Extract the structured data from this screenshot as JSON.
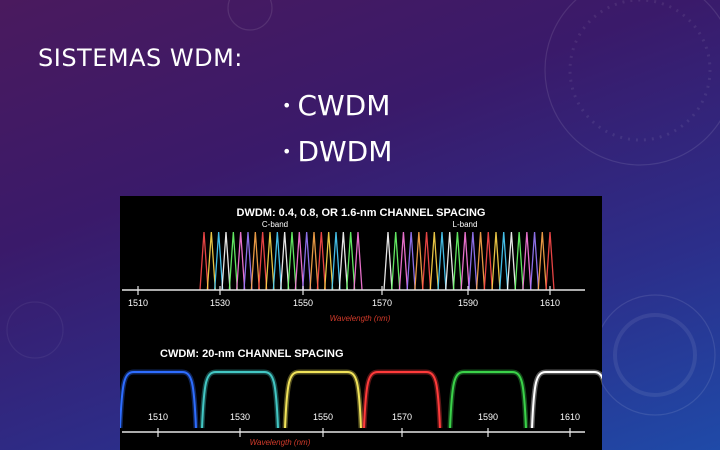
{
  "slide": {
    "title": "SISTEMAS WDM:",
    "bullets": [
      "CWDM",
      "DWDM"
    ]
  },
  "figure": {
    "dwdm": {
      "title": "DWDM: 0.4, 0.8, OR 1.6-nm CHANNEL SPACING",
      "band_c": "C-band",
      "band_l": "L-band",
      "axis_label": "Wavelength (nm)",
      "ticks": [
        "1510",
        "1530",
        "1550",
        "1570",
        "1590",
        "1610"
      ]
    },
    "cwdm": {
      "title": "CWDM: 20-nm CHANNEL SPACING",
      "axis_label": "Wavelength (nm)",
      "ticks": [
        "1510",
        "1530",
        "1550",
        "1570",
        "1590",
        "1610"
      ]
    },
    "colors": {
      "axis": "#e6e6e6",
      "label_red": "#d23a2a",
      "cwdm_channels": [
        "#2e6dff",
        "#43c7c4",
        "#f1e35a",
        "#ff3b3b",
        "#3bd24a",
        "#ffffff"
      ],
      "dwdm_channels": [
        "#ff4b4b",
        "#ffd84b",
        "#4bd2ff",
        "#ffffff",
        "#6bff6b",
        "#ff7be0",
        "#9b7bff",
        "#ffa84b"
      ]
    }
  }
}
